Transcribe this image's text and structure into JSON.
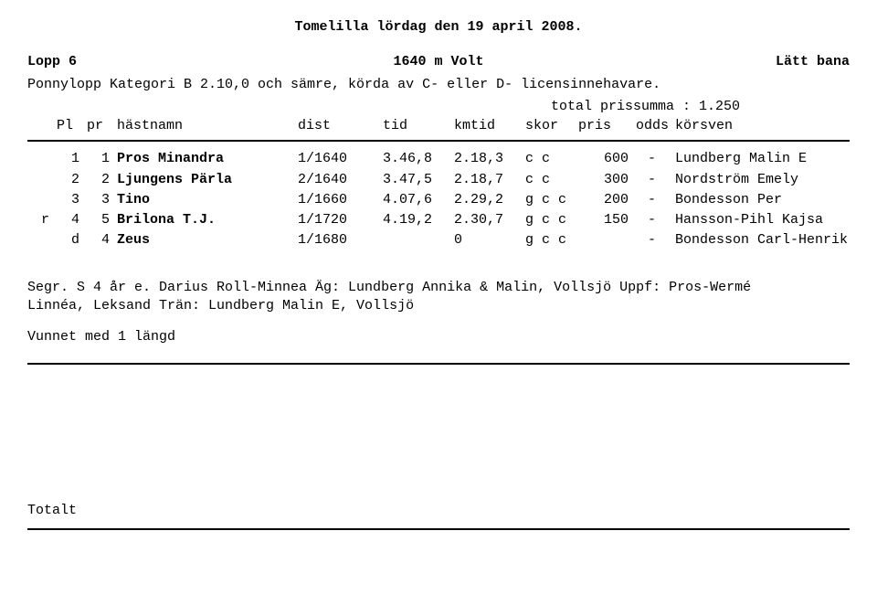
{
  "title": "Tomelilla  lördag den 19 april 2008.",
  "race_header": {
    "left": "Lopp 6",
    "mid": "1640 m  Volt",
    "right": "Lätt bana"
  },
  "category_line": "Ponnylopp Kategori B 2.10,0 och sämre, körda av C- eller D- licensinnehavare.",
  "prize_line": "total prissumma : 1.250",
  "columns": {
    "pl": "Pl",
    "pr": "pr",
    "name": "hästnamn",
    "dist": "dist",
    "tid": "tid",
    "kmtid": "kmtid",
    "skor": "skor",
    "pris": "pris",
    "odds": "odds",
    "drv": "körsven"
  },
  "rows": [
    {
      "flag": "",
      "pl": "1",
      "pr": "1",
      "name": "Pros Minandra",
      "dist": "1/1640",
      "tid": "3.46,8",
      "kmtid": "2.18,3",
      "skor": "  c c",
      "pris": "600",
      "odds": "-",
      "drv": "Lundberg Malin E"
    },
    {
      "flag": "",
      "pl": "2",
      "pr": "2",
      "name": "Ljungens Pärla",
      "dist": "2/1640",
      "tid": "3.47,5",
      "kmtid": "2.18,7",
      "skor": "  c c",
      "pris": "300",
      "odds": "-",
      "drv": "Nordström Emely"
    },
    {
      "flag": "",
      "pl": "3",
      "pr": "3",
      "name": "Tino",
      "dist": "1/1660",
      "tid": "4.07,6",
      "kmtid": "2.29,2",
      "skor": "g c c",
      "pris": "200",
      "odds": "-",
      "drv": "Bondesson Per"
    },
    {
      "flag": "r",
      "pl": "4",
      "pr": "5",
      "name": "Brilona T.J.",
      "dist": "1/1720",
      "tid": "4.19,2",
      "kmtid": "2.30,7",
      "skor": "g c c",
      "pris": "150",
      "odds": "-",
      "drv": "Hansson-Pihl Kajsa"
    },
    {
      "flag": "",
      "pl": "d",
      "pr": "4",
      "name": "Zeus",
      "dist": "1/1680",
      "tid": "",
      "kmtid": "0",
      "skor": "g c c",
      "pris": "",
      "odds": "-",
      "drv": "Bondesson Carl-Henrik"
    }
  ],
  "notes_line1": "Segr. S 4 år e. Darius Roll-Minnea Äg: Lundberg Annika & Malin, Vollsjö Uppf: Pros-Wermé",
  "notes_line2": "Linnéa, Leksand Trän: Lundberg Malin E, Vollsjö",
  "won_by": "Vunnet med 1 längd",
  "totalt": "Totalt"
}
